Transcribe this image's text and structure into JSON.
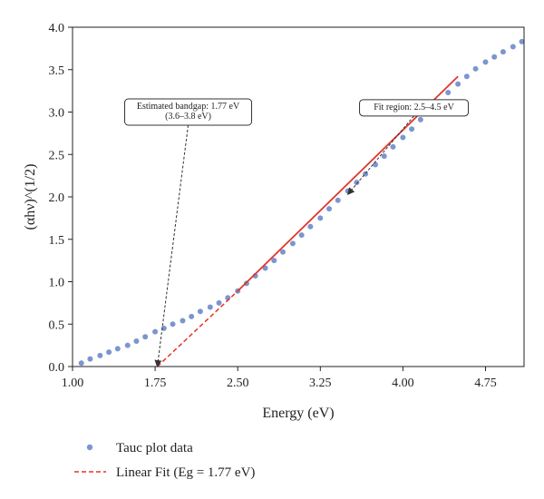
{
  "chart_data": {
    "type": "scatter",
    "xlabel": "Energy (eV)",
    "ylabel": "(αhν)^(1/2)",
    "xlim": [
      1.0,
      5.1
    ],
    "ylim": [
      0.0,
      4.0
    ],
    "xticks": [
      1.0,
      1.75,
      2.5,
      3.25,
      4.0,
      4.75
    ],
    "xtick_labels": [
      "1.00",
      "1.75",
      "2.50",
      "3.25",
      "4.00",
      "4.75"
    ],
    "yticks": [
      0.0,
      0.5,
      1.0,
      1.5,
      2.0,
      2.5,
      3.0,
      3.5,
      4.0
    ],
    "ytick_labels": [
      "0.0",
      "0.5",
      "1.0",
      "1.5",
      "2.0",
      "2.5",
      "3.0",
      "3.5",
      "4.0"
    ],
    "grid": false,
    "legend_position": "bottom-left-outside",
    "series": [
      {
        "name": "Tauc plot data",
        "kind": "scatter",
        "color": "#7b96cf",
        "x": [
          1.08,
          1.16,
          1.25,
          1.33,
          1.41,
          1.5,
          1.58,
          1.66,
          1.75,
          1.83,
          1.91,
          2.0,
          2.08,
          2.16,
          2.25,
          2.33,
          2.41,
          2.5,
          2.58,
          2.66,
          2.75,
          2.83,
          2.91,
          3.0,
          3.08,
          3.16,
          3.25,
          3.33,
          3.41,
          3.5,
          3.58,
          3.66,
          3.75,
          3.83,
          3.91,
          4.0,
          4.08,
          4.16,
          4.25,
          4.33,
          4.41,
          4.5,
          4.58,
          4.66,
          4.75,
          4.83,
          4.91,
          5.0,
          5.08
        ],
        "y": [
          0.04,
          0.09,
          0.13,
          0.17,
          0.21,
          0.25,
          0.3,
          0.35,
          0.41,
          0.45,
          0.5,
          0.54,
          0.59,
          0.65,
          0.7,
          0.75,
          0.81,
          0.89,
          0.98,
          1.07,
          1.16,
          1.25,
          1.35,
          1.45,
          1.55,
          1.65,
          1.75,
          1.86,
          1.96,
          2.07,
          2.17,
          2.27,
          2.38,
          2.48,
          2.59,
          2.7,
          2.8,
          2.91,
          3.02,
          3.12,
          3.23,
          3.33,
          3.42,
          3.51,
          3.59,
          3.65,
          3.71,
          3.77,
          3.83
        ]
      },
      {
        "name": "Linear Fit (Eg = 1.77 eV)",
        "kind": "line",
        "color": "#e0352b",
        "dashed_segment": [
          [
            1.77,
            0.0
          ],
          [
            2.5,
            0.89
          ]
        ],
        "solid_segment": [
          [
            2.5,
            0.89
          ],
          [
            4.5,
            3.42
          ]
        ]
      }
    ],
    "annotations": [
      {
        "id": "bandgap",
        "lines": [
          "Estimated bandgap: 1.77 eV",
          "(3.6–3.8 eV)"
        ],
        "anchor": [
          2.05,
          3.0
        ],
        "target": [
          1.77,
          0.0
        ]
      },
      {
        "id": "fit-region",
        "lines": [
          "Fit region: 2.5–4.5 eV"
        ],
        "anchor": [
          4.1,
          3.05
        ],
        "target": [
          3.5,
          2.03
        ]
      }
    ]
  }
}
